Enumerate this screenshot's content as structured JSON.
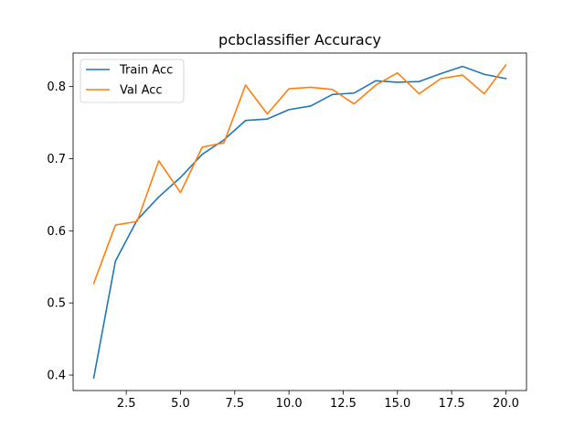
{
  "chart_data": {
    "type": "line",
    "title": "pcbclassifier Accuracy",
    "xlabel": "",
    "ylabel": "",
    "x": [
      1,
      2,
      3,
      4,
      5,
      6,
      7,
      8,
      9,
      10,
      11,
      12,
      13,
      14,
      15,
      16,
      17,
      18,
      19,
      20
    ],
    "xlim": [
      0.05,
      20.95
    ],
    "ylim": [
      0.3785,
      0.8465
    ],
    "xticks": [
      2.5,
      5.0,
      7.5,
      10.0,
      12.5,
      15.0,
      17.5,
      20.0
    ],
    "xtick_labels": [
      "2.5",
      "5.0",
      "7.5",
      "10.0",
      "12.5",
      "15.0",
      "17.5",
      "20.0"
    ],
    "yticks": [
      0.4,
      0.5,
      0.6,
      0.7,
      0.8
    ],
    "ytick_labels": [
      "0.4",
      "0.5",
      "0.6",
      "0.7",
      "0.8"
    ],
    "grid": false,
    "legend": "upper-left",
    "series": [
      {
        "name": "Train Acc",
        "color": "#1f77b4",
        "values": [
          0.396,
          0.558,
          0.615,
          0.647,
          0.674,
          0.706,
          0.726,
          0.753,
          0.755,
          0.768,
          0.773,
          0.789,
          0.791,
          0.808,
          0.806,
          0.807,
          0.818,
          0.828,
          0.817,
          0.811
        ]
      },
      {
        "name": "Val Acc",
        "color": "#ff7f0e",
        "values": [
          0.527,
          0.608,
          0.613,
          0.697,
          0.653,
          0.716,
          0.722,
          0.802,
          0.762,
          0.797,
          0.799,
          0.796,
          0.776,
          0.802,
          0.819,
          0.79,
          0.811,
          0.816,
          0.79,
          0.83
        ]
      }
    ]
  }
}
